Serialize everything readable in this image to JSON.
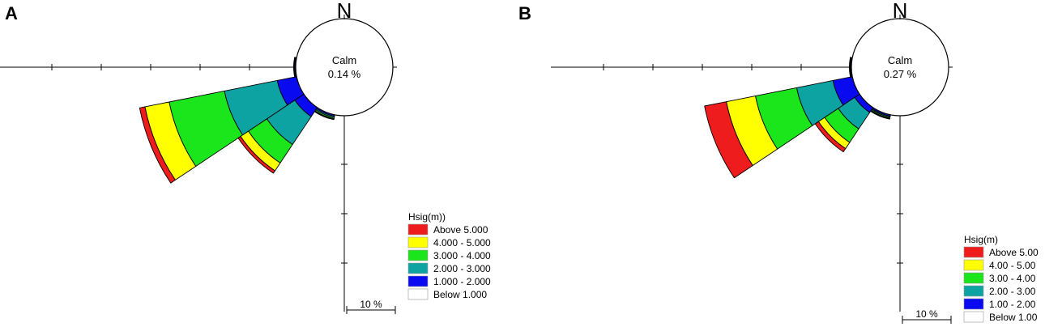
{
  "chart_data": [
    {
      "type": "rose",
      "panel_label": "A",
      "north_label": "N",
      "calm": {
        "label": "Calm",
        "value": "0.14 %"
      },
      "legend": {
        "title": "Hsig(m))",
        "entries": [
          {
            "label": "Above  5.000",
            "color": "#ee1c1c"
          },
          {
            "label": "4.000 - 5.000",
            "color": "#ffff00"
          },
          {
            "label": "3.000 - 4.000",
            "color": "#1be51b"
          },
          {
            "label": "2.000 - 3.000",
            "color": "#0ea3a3"
          },
          {
            "label": "1.000 - 2.000",
            "color": "#0a0af0"
          },
          {
            "label": "Below  1.000",
            "color": "#ffffff"
          }
        ]
      },
      "scale_bar": "10 %",
      "ring_step_percent": 5,
      "classes": [
        "Above 5.000",
        "4.000 - 5.000",
        "3.000 - 4.000",
        "2.000 - 3.000",
        "1.000 - 2.000",
        "Below 1.000"
      ],
      "sectors": [
        {
          "direction_deg": 247.5,
          "cumulative_percent": {
            "1.000 - 2.000": 4.0,
            "2.000 - 3.000": 14.9,
            "3.000 - 4.000": 26.3,
            "4.000 - 5.000": 31.3,
            "Above 5.000": 32.4
          }
        },
        {
          "direction_deg": 225.0,
          "cumulative_percent": {
            "1.000 - 2.000": 2.2,
            "2.000 - 3.000": 9.0,
            "3.000 - 4.000": 13.5,
            "4.000 - 5.000": 15.4,
            "Above 5.000": 16.0
          }
        },
        {
          "direction_deg": 202.5,
          "cumulative_percent": {
            "1.000 - 2.000": 0.3,
            "2.000 - 3.000": 0.55,
            "3.000 - 4.000": 0.8,
            "4.000 - 5.000": 0.9,
            "Above 5.000": 1.0
          }
        },
        {
          "direction_deg": 270.0,
          "cumulative_percent": {
            "1.000 - 2.000": 0.2,
            "2.000 - 3.000": 0.3,
            "3.000 - 4.000": 0.35,
            "4.000 - 5.000": 0.4,
            "Above 5.000": 0.4
          }
        }
      ]
    },
    {
      "type": "rose",
      "panel_label": "B",
      "north_label": "N",
      "calm": {
        "label": "Calm",
        "value": "0.27 %"
      },
      "legend": {
        "title": "Hsig(m)",
        "entries": [
          {
            "label": "Above 5.00",
            "color": "#ee1c1c"
          },
          {
            "label": "4.00 - 5.00",
            "color": "#ffff00"
          },
          {
            "label": "3.00 - 4.00",
            "color": "#1be51b"
          },
          {
            "label": "2.00 - 3.00",
            "color": "#0ea3a3"
          },
          {
            "label": "1.00 - 2.00",
            "color": "#0a0af0"
          },
          {
            "label": "Below 1.00",
            "color": "#ffffff"
          }
        ]
      },
      "scale_bar": "10 %",
      "ring_step_percent": 5,
      "classes": [
        "Above 5.00",
        "4.00 - 5.00",
        "3.00 - 4.00",
        "2.00 - 3.00",
        "1.00 - 2.00",
        "Below 1.00"
      ],
      "sectors": [
        {
          "direction_deg": 247.5,
          "cumulative_percent": {
            "1.00 - 2.00": 4.0,
            "2.00 - 3.00": 11.5,
            "3.00 - 4.00": 20.0,
            "4.00 - 5.00": 26.0,
            "Above 5.00": 30.5
          }
        },
        {
          "direction_deg": 225.0,
          "cumulative_percent": {
            "1.00 - 2.00": 1.2,
            "2.00 - 3.00": 5.2,
            "3.00 - 4.00": 8.5,
            "4.00 - 5.00": 10.0,
            "Above 5.00": 10.8
          }
        },
        {
          "direction_deg": 202.5,
          "cumulative_percent": {
            "1.00 - 2.00": 0.3,
            "2.00 - 3.00": 0.5,
            "3.00 - 4.00": 0.7,
            "4.00 - 5.00": 0.8,
            "Above 5.00": 0.9
          }
        },
        {
          "direction_deg": 270.0,
          "cumulative_percent": {
            "1.00 - 2.00": 0.2,
            "2.00 - 3.00": 0.3,
            "3.00 - 4.00": 0.35,
            "4.00 - 5.00": 0.4,
            "Above 5.00": 0.4
          }
        }
      ]
    }
  ]
}
